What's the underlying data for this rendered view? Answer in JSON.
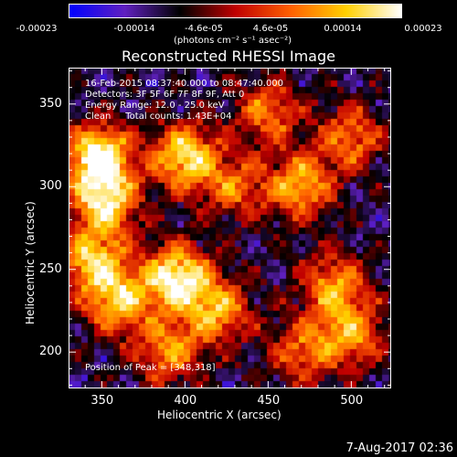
{
  "colorbar": {
    "ticks": [
      "-0.00023",
      "-0.00014",
      "-4.6e-05",
      "4.6e-05",
      "0.00014",
      "0.00023"
    ],
    "unit": "(photons cm⁻² s⁻¹ asec⁻²)"
  },
  "title": "Reconstructed RHESSI Image",
  "info": {
    "line1": "16-Feb-2015 08:37:40.000 to 08:47:40.000",
    "line2": "Detectors: 3F 5F 6F 7F 8F 9F, Att 0",
    "line3": "Energy Range: 12.0 - 25.0 keV",
    "line4": "Clean     Total counts: 1.43E+04",
    "peak": "Position of Peak = [348,318]"
  },
  "footer": "7-Aug-2017 02:36",
  "chart_data": {
    "type": "heatmap",
    "title": "Reconstructed RHESSI Image",
    "xlabel": "Heliocentric X (arcsec)",
    "ylabel": "Heliocentric Y (arcsec)",
    "xlim": [
      330,
      524
    ],
    "ylim": [
      178,
      372
    ],
    "xticks": [
      "350",
      "400",
      "450",
      "500"
    ],
    "yticks": [
      "200",
      "250",
      "300",
      "350"
    ],
    "xtick_values": [
      350,
      400,
      450,
      500
    ],
    "ytick_values": [
      200,
      250,
      300,
      350
    ],
    "colorbar_range": [
      -0.00023,
      0.00023
    ],
    "colormap": [
      "#0000ff",
      "#6020c0",
      "#000000",
      "#c00000",
      "#ff6000",
      "#ffd000",
      "#ffffff"
    ],
    "bright_sources": [
      {
        "x": 348,
        "y": 318,
        "peak": 1.0
      },
      {
        "x": 395,
        "y": 245,
        "peak": 0.95
      },
      {
        "x": 400,
        "y": 318,
        "peak": 0.85
      },
      {
        "x": 352,
        "y": 290,
        "peak": 0.8
      },
      {
        "x": 360,
        "y": 230,
        "peak": 0.7
      },
      {
        "x": 345,
        "y": 255,
        "peak": 0.75
      },
      {
        "x": 420,
        "y": 225,
        "peak": 0.65
      },
      {
        "x": 390,
        "y": 200,
        "peak": 0.6
      },
      {
        "x": 470,
        "y": 300,
        "peak": 0.7
      },
      {
        "x": 500,
        "y": 330,
        "peak": 0.55
      },
      {
        "x": 490,
        "y": 240,
        "peak": 0.65
      },
      {
        "x": 500,
        "y": 210,
        "peak": 0.6
      },
      {
        "x": 450,
        "y": 345,
        "peak": 0.55
      },
      {
        "x": 430,
        "y": 300,
        "peak": 0.5
      },
      {
        "x": 470,
        "y": 200,
        "peak": 0.5
      }
    ]
  }
}
